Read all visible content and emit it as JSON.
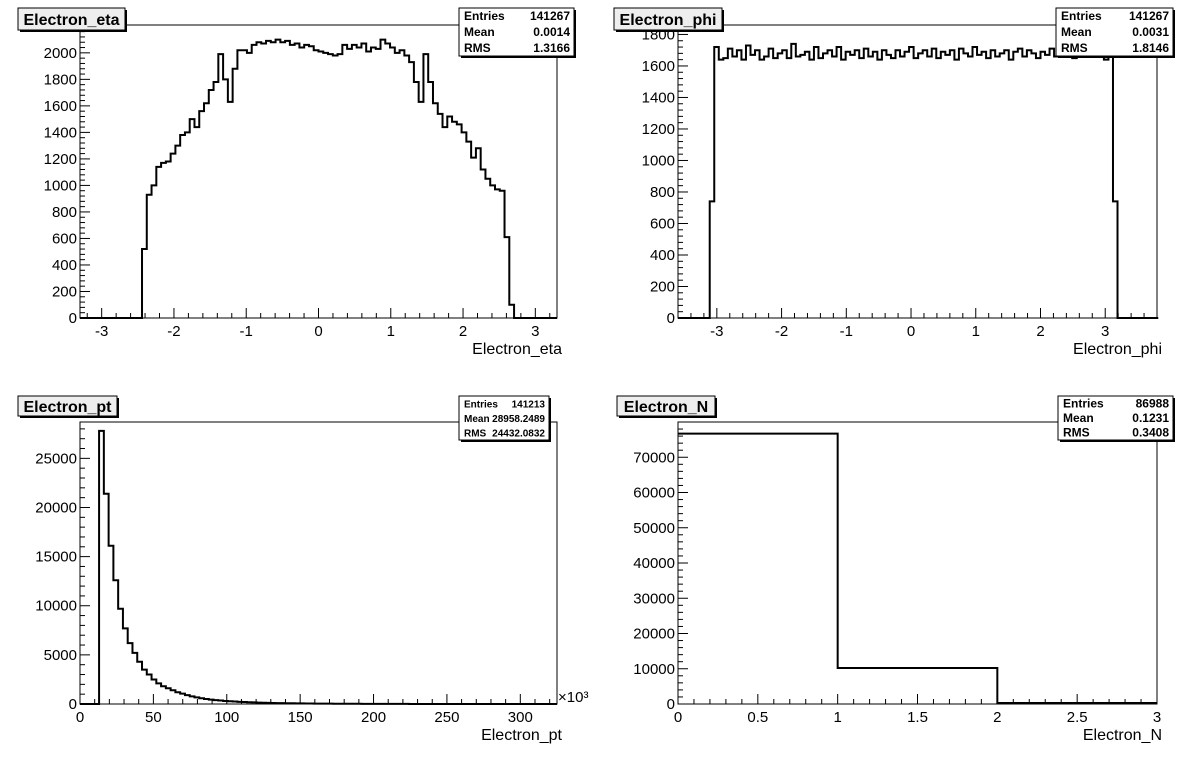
{
  "panels": [
    {
      "title": "Electron_eta",
      "xlabel": "Electron_eta",
      "stats": [
        [
          "Entries",
          "141267"
        ],
        [
          "Mean",
          "0.0014"
        ],
        [
          "RMS",
          "1.3166"
        ]
      ],
      "chart_data": {
        "type": "bar",
        "x_range": [
          -3.3,
          3.3
        ],
        "ylim": [
          0,
          2210
        ],
        "x_ticks": [
          -3,
          -2,
          -1,
          0,
          1,
          2,
          3
        ],
        "y_ticks": [
          0,
          200,
          400,
          600,
          800,
          1000,
          1200,
          1400,
          1600,
          1800,
          2000,
          2200
        ],
        "bin_edges_start": -3.3,
        "bin_width": 0.066,
        "values": [
          0,
          0,
          0,
          0,
          0,
          0,
          0,
          0,
          0,
          0,
          0,
          0,
          0,
          520,
          930,
          1000,
          1140,
          1170,
          1180,
          1240,
          1300,
          1380,
          1400,
          1500,
          1440,
          1560,
          1620,
          1720,
          1780,
          1990,
          1800,
          1630,
          1880,
          2020,
          2020,
          2000,
          2060,
          2080,
          2070,
          2090,
          2080,
          2100,
          2080,
          2090,
          2060,
          2070,
          2040,
          2060,
          2050,
          2020,
          2010,
          2000,
          1990,
          1980,
          1990,
          2060,
          2030,
          2060,
          2040,
          2070,
          2010,
          2040,
          2030,
          2100,
          2070,
          2040,
          2000,
          2020,
          1980,
          1930,
          1780,
          1630,
          1990,
          1780,
          1620,
          1540,
          1440,
          1520,
          1480,
          1460,
          1400,
          1330,
          1210,
          1280,
          1120,
          1050,
          1000,
          970,
          960,
          610,
          100,
          0,
          0,
          0,
          0,
          0,
          0,
          0,
          0,
          0
        ]
      }
    },
    {
      "title": "Electron_phi",
      "xlabel": "Electron_phi",
      "stats": [
        [
          "Entries",
          "141267"
        ],
        [
          "Mean",
          "0.0031"
        ],
        [
          "RMS",
          "1.8146"
        ]
      ],
      "chart_data": {
        "type": "bar",
        "x_range": [
          -3.6,
          3.8
        ],
        "ylim": [
          0,
          1860
        ],
        "x_ticks": [
          -3,
          -2,
          -1,
          0,
          1,
          2,
          3
        ],
        "y_ticks": [
          0,
          200,
          400,
          600,
          800,
          1000,
          1200,
          1400,
          1600,
          1800
        ],
        "bin_edges_start": -3.6,
        "bin_width": 0.07,
        "values": [
          0,
          0,
          0,
          0,
          0,
          0,
          0,
          740,
          1720,
          1640,
          1650,
          1710,
          1660,
          1700,
          1640,
          1730,
          1670,
          1700,
          1640,
          1660,
          1710,
          1650,
          1680,
          1700,
          1650,
          1740,
          1660,
          1670,
          1690,
          1640,
          1720,
          1650,
          1680,
          1700,
          1660,
          1720,
          1640,
          1690,
          1670,
          1700,
          1650,
          1710,
          1660,
          1690,
          1640,
          1700,
          1670,
          1650,
          1700,
          1660,
          1690,
          1720,
          1650,
          1680,
          1700,
          1660,
          1710,
          1650,
          1690,
          1670,
          1700,
          1640,
          1710,
          1680,
          1660,
          1720,
          1670,
          1690,
          1650,
          1700,
          1660,
          1680,
          1700,
          1640,
          1690,
          1710,
          1660,
          1700,
          1680,
          1650,
          1690,
          1670,
          1710,
          1660,
          1700,
          1690,
          1720,
          1650,
          1700,
          1680,
          1710,
          1660,
          1690,
          1680,
          1640,
          1720,
          740,
          0,
          0,
          0,
          0,
          0,
          0,
          0,
          0,
          0
        ]
      }
    },
    {
      "title": "Electron_pt",
      "xlabel": "Electron_pt",
      "x_exponent": "×10³",
      "stats": [
        [
          "Entries",
          "141213"
        ],
        [
          "Mean",
          "28958.2489"
        ],
        [
          "RMS",
          "24432.0832"
        ]
      ],
      "chart_data": {
        "type": "bar",
        "x_range": [
          0,
          325
        ],
        "ylim": [
          0,
          28700
        ],
        "x_ticks": [
          0,
          50,
          100,
          150,
          200,
          250,
          300
        ],
        "y_ticks": [
          0,
          5000,
          10000,
          15000,
          20000,
          25000
        ],
        "bin_edges_start": 0,
        "bin_width": 3.25,
        "values": [
          0,
          0,
          0,
          0,
          27800,
          21400,
          16100,
          12600,
          9700,
          7700,
          6200,
          5200,
          4300,
          3500,
          3000,
          2500,
          2100,
          1800,
          1600,
          1400,
          1200,
          1050,
          900,
          780,
          680,
          590,
          510,
          450,
          400,
          350,
          310,
          280,
          250,
          220,
          200,
          180,
          160,
          145,
          130,
          118,
          105,
          95,
          85,
          78,
          70,
          64,
          58,
          52,
          48,
          44,
          40,
          36,
          33,
          30,
          27,
          25,
          23,
          21,
          19,
          17,
          15,
          14,
          13,
          12,
          11,
          10,
          9,
          8,
          7,
          6,
          5,
          5,
          4,
          4,
          3,
          3,
          2,
          2,
          2,
          1,
          1,
          1,
          1,
          1,
          0,
          0,
          0,
          0,
          0,
          0,
          0,
          0,
          0,
          0,
          0,
          0,
          0,
          0,
          0,
          0
        ]
      }
    },
    {
      "title": "Electron_N",
      "xlabel": "Electron_N",
      "stats": [
        [
          "Entries",
          "86988"
        ],
        [
          "Mean",
          "0.1231"
        ],
        [
          "RMS",
          "0.3408"
        ]
      ],
      "chart_data": {
        "type": "bar",
        "x_range": [
          0,
          3
        ],
        "ylim": [
          0,
          80000
        ],
        "x_ticks": [
          0,
          0.5,
          1,
          1.5,
          2,
          2.5,
          3
        ],
        "y_ticks": [
          0,
          10000,
          20000,
          30000,
          40000,
          50000,
          60000,
          70000
        ],
        "bin_edges_start": 0,
        "bin_width": 1,
        "values": [
          76700,
          10200,
          300
        ]
      }
    }
  ]
}
